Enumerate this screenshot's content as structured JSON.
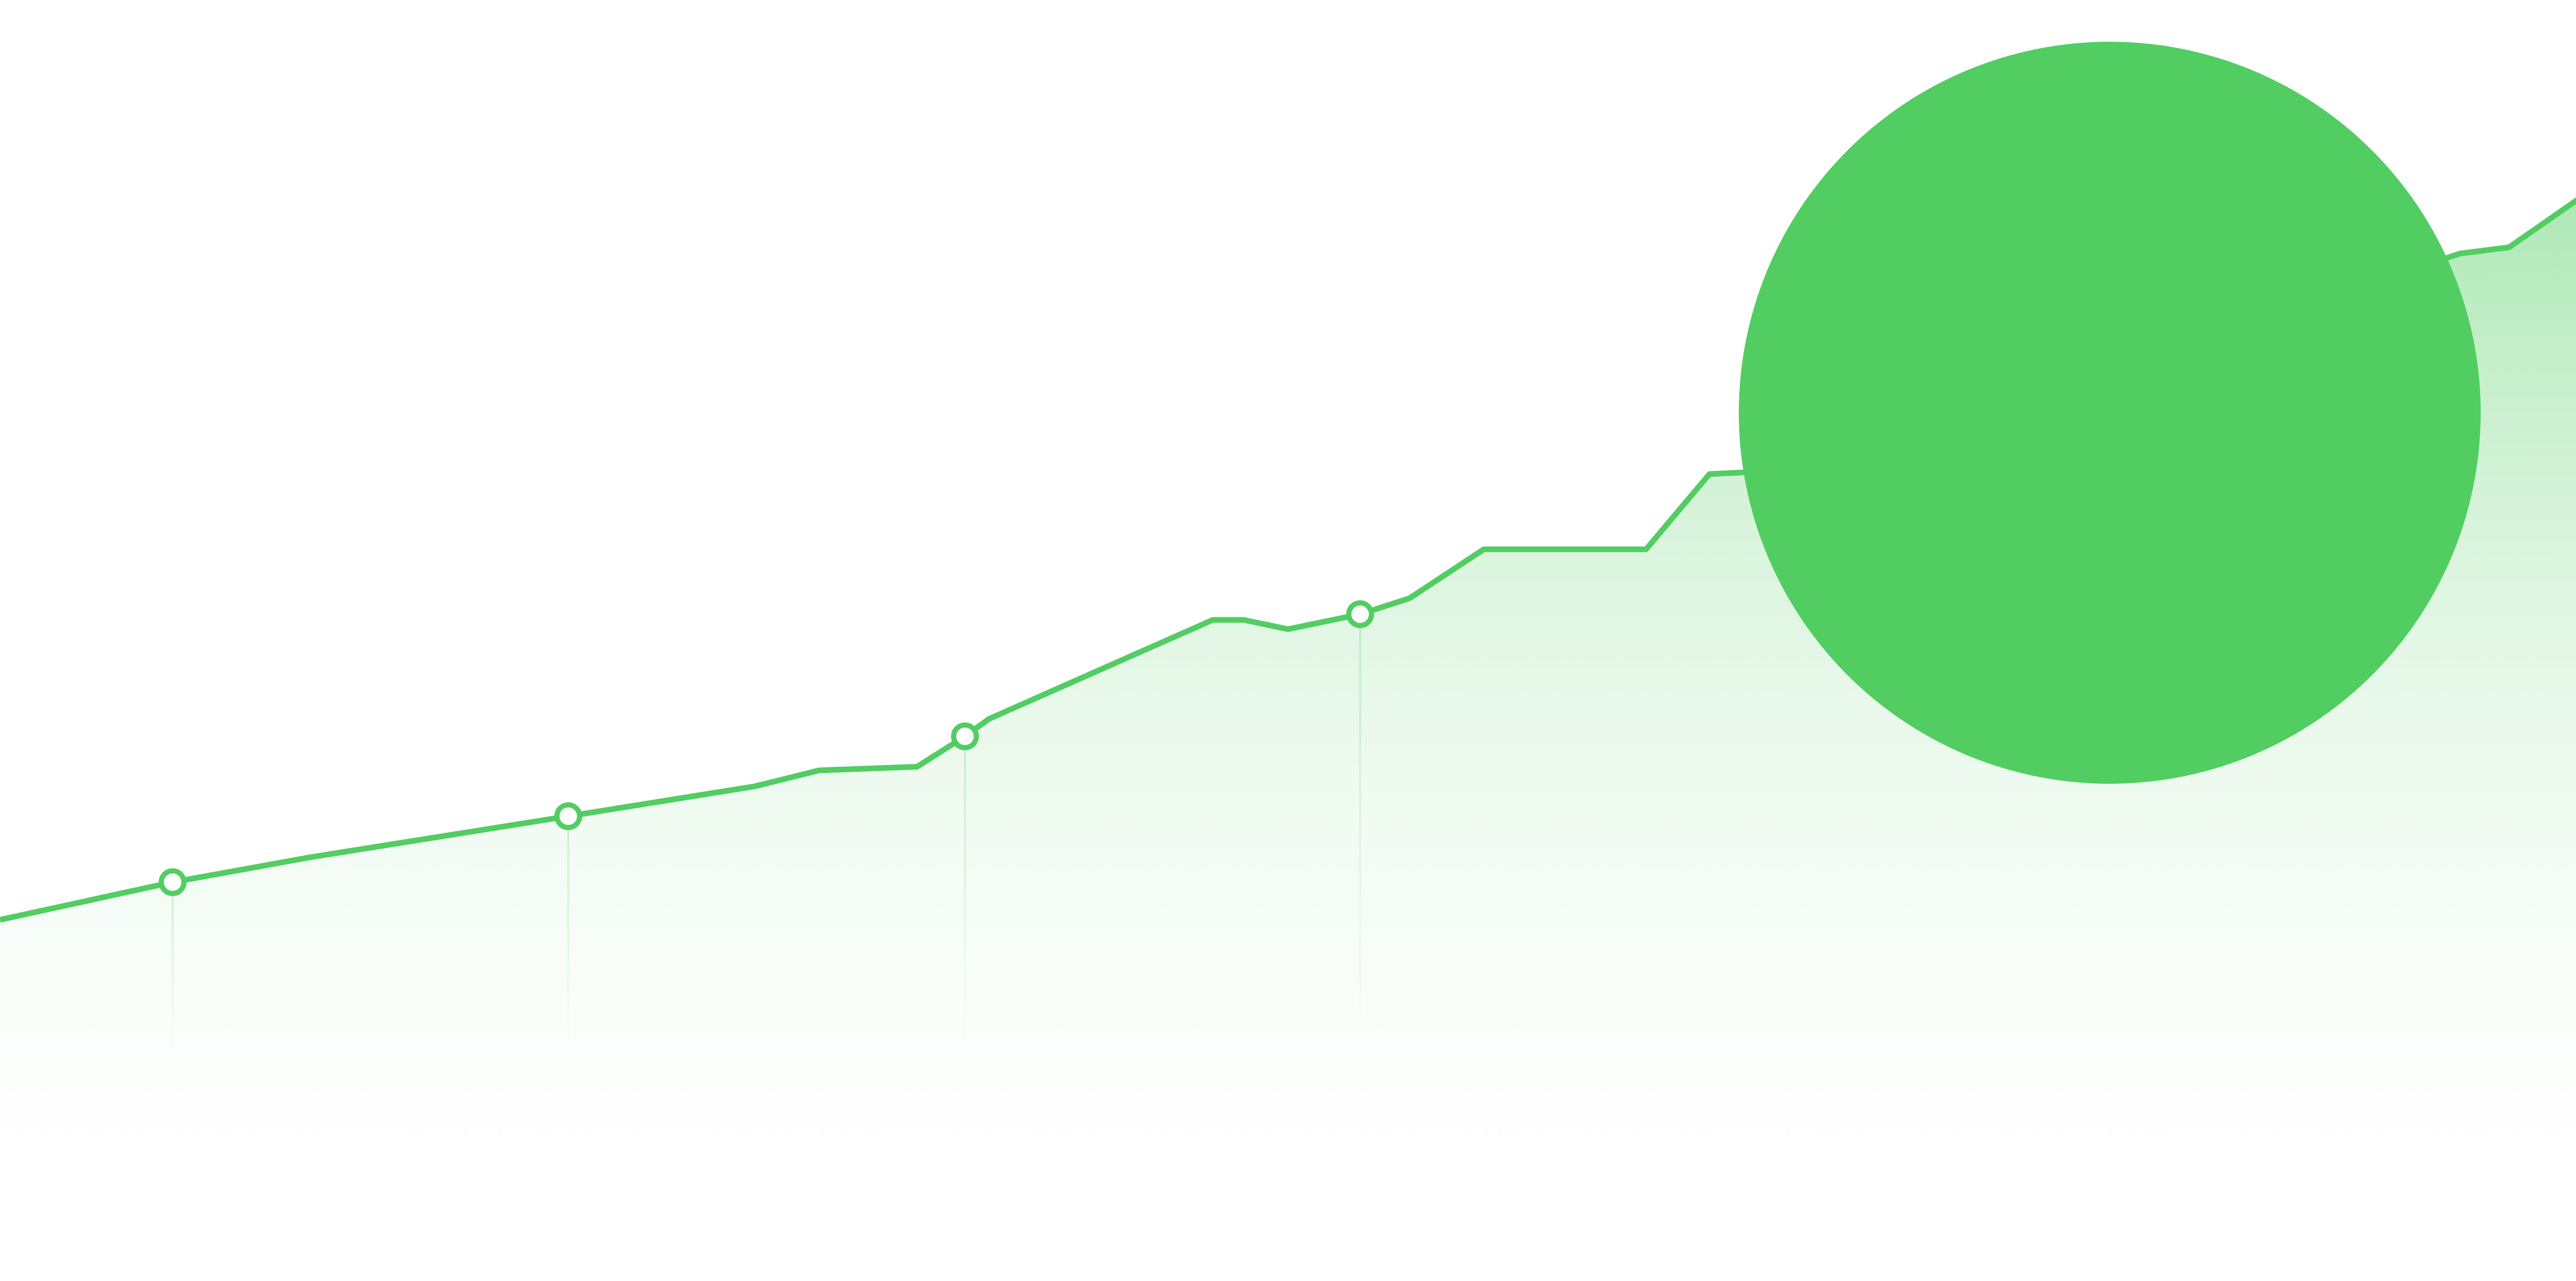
{
  "colors": {
    "line": "#52cd62",
    "area_top": "#52cd62",
    "area_bottom": "#ffffff",
    "marker_fill": "#ffffff",
    "bubble": "#52cd62",
    "guide": "#52cd62"
  },
  "chart_data": {
    "type": "area",
    "title": "",
    "xlabel": "",
    "ylabel": "",
    "grid": false,
    "legend": "none",
    "xlim": [
      0,
      5120
    ],
    "ylim": [
      0,
      2486
    ],
    "series": [
      {
        "name": "",
        "x": [
          0,
          335,
          600,
          1103,
          1465,
          1590,
          1780,
          1873,
          1920,
          2354,
          2414,
          2500,
          2640,
          2736,
          2880,
          3195,
          3318,
          3400,
          4730,
          4775,
          4870,
          5120
        ],
        "y": [
          701,
          774,
          822,
          902,
          960,
          991,
          998,
          1057,
          1091,
          1283,
          1283,
          1265,
          1294,
          1325,
          1420,
          1420,
          1566,
          1570,
          1979,
          1994,
          2006,
          2180
        ]
      }
    ],
    "markers": [
      {
        "x": 335,
        "y": 774
      },
      {
        "x": 1103,
        "y": 902
      },
      {
        "x": 1873,
        "y": 1057
      },
      {
        "x": 2640,
        "y": 1294
      }
    ],
    "highlight": {
      "x": 4095,
      "y": 1685,
      "r": 720
    }
  }
}
